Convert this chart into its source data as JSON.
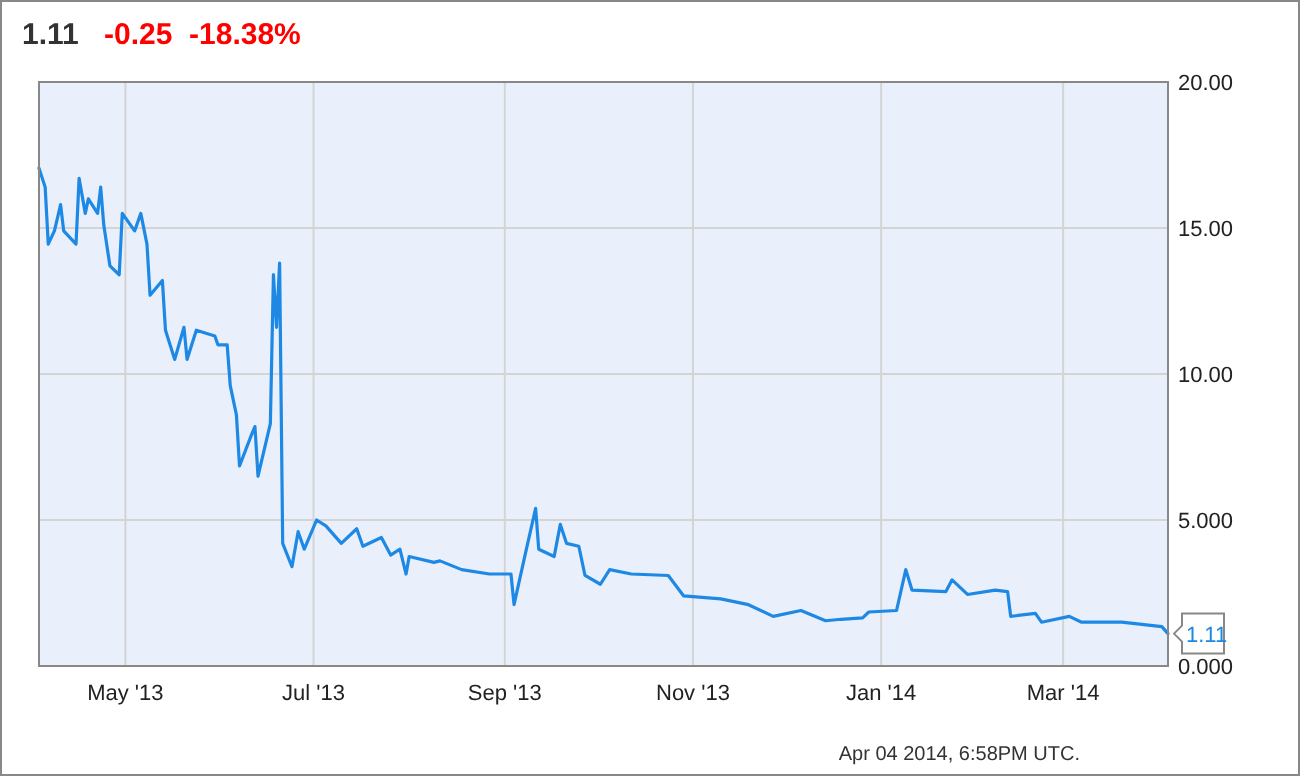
{
  "chart_data": {
    "type": "line",
    "title": "1.11",
    "subtitle": "-0.25  -18.38%",
    "x": [
      "2013-04-03",
      "2013-04-05",
      "2013-04-06",
      "2013-04-08",
      "2013-04-10",
      "2013-04-11",
      "2013-04-15",
      "2013-04-16",
      "2013-04-18",
      "2013-04-19",
      "2013-04-22",
      "2013-04-23",
      "2013-04-24",
      "2013-04-26",
      "2013-04-29",
      "2013-04-30",
      "2013-05-04",
      "2013-05-06",
      "2013-05-08",
      "2013-05-09",
      "2013-05-13",
      "2013-05-14",
      "2013-05-17",
      "2013-05-20",
      "2013-05-21",
      "2013-05-24",
      "2013-05-30",
      "2013-05-31",
      "2013-06-03",
      "2013-06-04",
      "2013-06-06",
      "2013-06-07",
      "2013-06-11",
      "2013-06-12",
      "2013-06-13",
      "2013-06-17",
      "2013-06-18",
      "2013-06-19",
      "2013-06-20",
      "2013-06-21",
      "2013-06-24",
      "2013-06-26",
      "2013-06-28",
      "2013-07-02",
      "2013-07-05",
      "2013-07-10",
      "2013-07-15",
      "2013-07-17",
      "2013-07-23",
      "2013-07-26",
      "2013-07-29",
      "2013-07-31",
      "2013-08-01",
      "2013-08-09",
      "2013-08-11",
      "2013-08-18",
      "2013-08-27",
      "2013-09-03",
      "2013-09-04",
      "2013-09-08",
      "2013-09-11",
      "2013-09-12",
      "2013-09-17",
      "2013-09-19",
      "2013-09-21",
      "2013-09-25",
      "2013-09-27",
      "2013-10-02",
      "2013-10-05",
      "2013-10-12",
      "2013-10-24",
      "2013-10-29",
      "2013-11-10",
      "2013-11-19",
      "2013-11-27",
      "2013-12-06",
      "2013-12-14",
      "2013-12-19",
      "2013-12-26",
      "2013-12-28",
      "2014-01-06",
      "2014-01-09",
      "2014-01-11",
      "2014-01-22",
      "2014-01-24",
      "2014-01-29",
      "2014-02-07",
      "2014-02-11",
      "2014-02-12",
      "2014-02-20",
      "2014-02-22",
      "2014-03-03",
      "2014-03-07",
      "2014-03-20",
      "2014-04-02",
      "2014-04-04"
    ],
    "series": [
      {
        "color": "#1e88e5",
        "values": [
          17.05,
          16.4,
          14.45,
          14.9,
          15.8,
          14.9,
          14.45,
          16.7,
          15.5,
          16.0,
          15.5,
          16.4,
          15.1,
          13.7,
          13.4,
          15.5,
          14.9,
          15.5,
          14.45,
          12.7,
          13.2,
          11.5,
          10.5,
          11.6,
          10.5,
          11.5,
          11.3,
          11.0,
          11.0,
          9.6,
          8.6,
          6.85,
          7.95,
          8.2,
          6.5,
          8.3,
          13.4,
          11.6,
          13.8,
          4.2,
          3.4,
          4.6,
          4.0,
          5.0,
          4.8,
          4.2,
          4.7,
          4.1,
          4.4,
          3.8,
          4.0,
          3.15,
          3.75,
          3.55,
          3.6,
          3.3,
          3.15,
          3.15,
          2.1,
          4.0,
          5.4,
          4.0,
          3.75,
          4.85,
          4.2,
          4.1,
          3.1,
          2.8,
          3.3,
          3.15,
          3.1,
          2.4,
          2.3,
          2.1,
          1.7,
          1.9,
          1.55,
          1.6,
          1.65,
          1.85,
          1.9,
          3.3,
          2.6,
          2.55,
          2.95,
          2.45,
          2.6,
          2.55,
          1.7,
          1.8,
          1.5,
          1.7,
          1.5,
          1.5,
          1.35,
          1.11
        ]
      }
    ],
    "xlim": [
      "2013-04-03",
      "2014-04-04"
    ],
    "xticks": [
      {
        "value": "2013-05-01",
        "label": "May '13"
      },
      {
        "value": "2013-07-01",
        "label": "Jul '13"
      },
      {
        "value": "2013-09-01",
        "label": "Sep '13"
      },
      {
        "value": "2013-11-01",
        "label": "Nov '13"
      },
      {
        "value": "2014-01-01",
        "label": "Jan '14"
      },
      {
        "value": "2014-03-01",
        "label": "Mar '14"
      }
    ],
    "ylim": [
      0,
      20
    ],
    "yticks": [
      {
        "value": 0,
        "label": "0.000"
      },
      {
        "value": 5,
        "label": "5.000"
      },
      {
        "value": 10,
        "label": "10.00"
      },
      {
        "value": 15,
        "label": "15.00"
      },
      {
        "value": 20,
        "label": "20.00"
      }
    ],
    "grid": true,
    "annotations": [
      {
        "text": "1.11",
        "x": "2014-04-04",
        "y": 1.11
      },
      "Apr 04 2014, 6:58PM UTC."
    ]
  }
}
